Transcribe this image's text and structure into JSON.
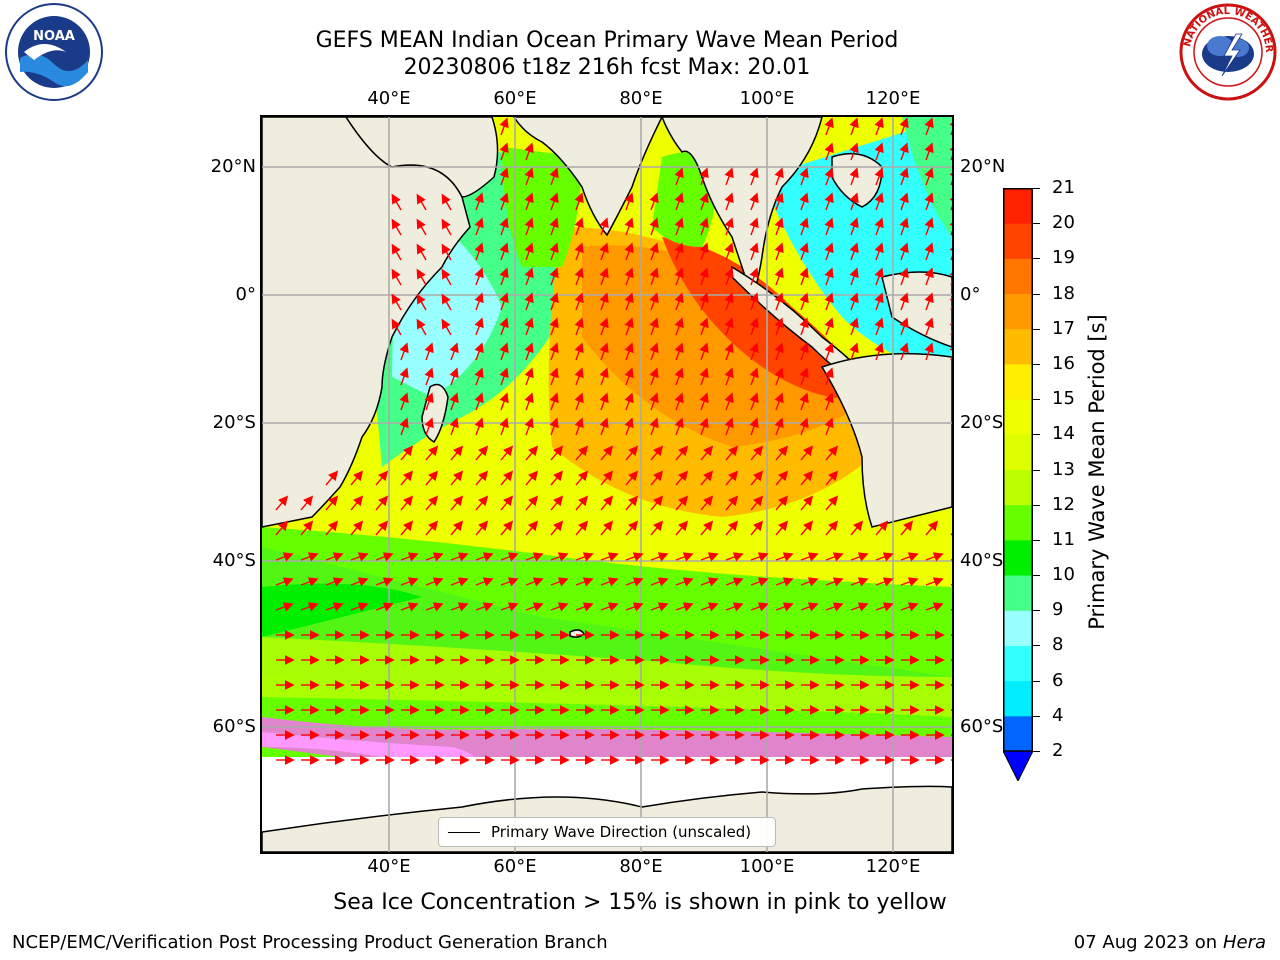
{
  "title": {
    "line1": "GEFS MEAN Indian Ocean Primary Wave Mean Period",
    "line2": "20230806 t18z 216h fcst   Max: 20.01"
  },
  "map": {
    "lon_ticks": [
      "40°E",
      "60°E",
      "80°E",
      "100°E",
      "120°E"
    ],
    "lat_ticks": [
      "20°N",
      "0°",
      "20°S",
      "40°S",
      "60°S"
    ],
    "legend": "Primary Wave Direction (unscaled)",
    "arrow_color": "#ff0000"
  },
  "colorbar": {
    "label": "Primary Wave Mean Period [s]",
    "ticks": [
      "2",
      "4",
      "6",
      "8",
      "9",
      "10",
      "11",
      "12",
      "13",
      "14",
      "15",
      "16",
      "17",
      "18",
      "19",
      "20",
      "21"
    ],
    "colors": [
      "#0066ff",
      "#00eeff",
      "#33ffff",
      "#99ffff",
      "#44ff88",
      "#00ee00",
      "#66ff00",
      "#bbff00",
      "#ddff00",
      "#eeff00",
      "#ffee00",
      "#ffbb00",
      "#ff9900",
      "#ff7700",
      "#ff4400",
      "#ff2200"
    ],
    "extend_color": "#0000ff"
  },
  "caption": "Sea Ice Concentration > 15% is shown in pink to yellow",
  "footer": {
    "left": "NCEP/EMC/Verification Post Processing Product Generation Branch",
    "date": "07 Aug 2023 on",
    "host": "Hera"
  },
  "logos": {
    "left": "NOAA",
    "right": "NATIONAL WEATHER SERVICE"
  }
}
